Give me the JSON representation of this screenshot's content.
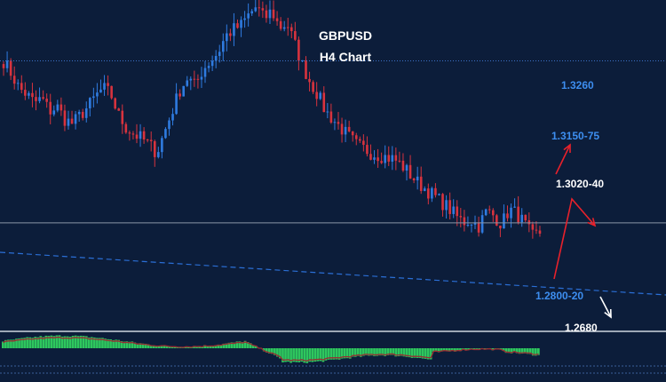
{
  "chart_data": {
    "type": "candlestick",
    "title": "GBPUSD",
    "subtitle": "H4 Chart",
    "legend": "none",
    "grid": false,
    "price_range": [
      1.262,
      1.338
    ],
    "close_path": [
      1.326,
      1.323,
      1.3195,
      1.318,
      1.316,
      1.317,
      1.314,
      1.315,
      1.312,
      1.311,
      1.313,
      1.315,
      1.3175,
      1.3195,
      1.318,
      1.313,
      1.31,
      1.3085,
      1.3075,
      1.306,
      1.304,
      1.309,
      1.314,
      1.319,
      1.322,
      1.32,
      1.324,
      1.326,
      1.328,
      1.332,
      1.3335,
      1.3345,
      1.337,
      1.339,
      1.336,
      1.338,
      1.334,
      1.335,
      1.33,
      1.325,
      1.321,
      1.318,
      1.314,
      1.312,
      1.31,
      1.308,
      1.306,
      1.305,
      1.304,
      1.3035,
      1.303,
      1.3025,
      1.301,
      1.299,
      1.297,
      1.2955,
      1.294,
      1.2925,
      1.291,
      1.289,
      1.2875,
      1.288,
      1.2865,
      1.29,
      1.289,
      1.287,
      1.2905,
      1.2895,
      1.287,
      1.284,
      1.285
    ],
    "reference_lines": [
      1.326,
      1.2873
    ],
    "levels": [
      {
        "label": "1.3260",
        "color": "#3d8ef0"
      },
      {
        "label": "1.3150-75",
        "color": "#3d8ef0"
      },
      {
        "label": "1.3020-40",
        "color": "#ffffff"
      },
      {
        "label": "1.2800-20",
        "color": "#3d8ef0"
      },
      {
        "label": "1.2680",
        "color": "#ffffff"
      }
    ],
    "colors": {
      "bull": "#2f7be0",
      "bear": "#d8333e",
      "oscillator_bull": "#2ec75e",
      "oscillator_bear": "#9b2b32",
      "trendline": "#2b6fd6",
      "arrows_red": "#e8212b",
      "arrows_white": "#ffffff"
    }
  }
}
